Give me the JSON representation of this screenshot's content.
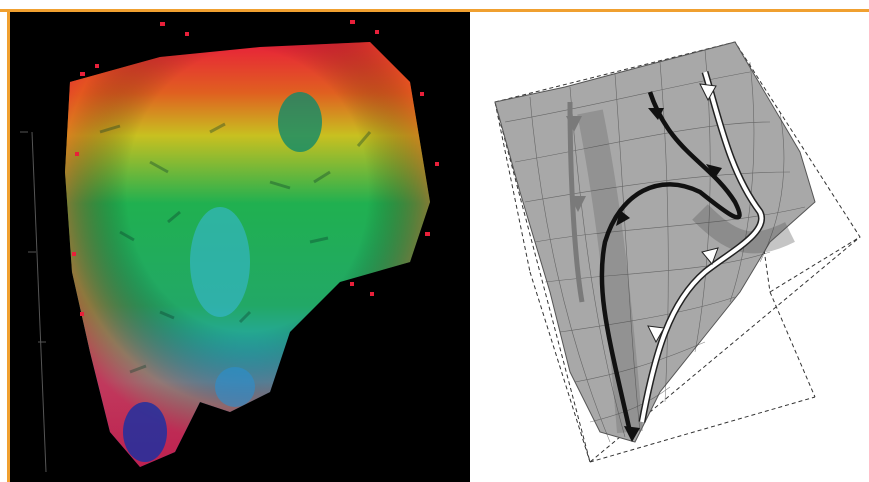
{
  "figure": {
    "left_panel": {
      "name": "funnel-energy-landscape",
      "colors": [
        "#1a2a9a",
        "#2aa8e0",
        "#20b050",
        "#c8c020",
        "#e06020",
        "#e8203a"
      ]
    },
    "right_panel": {
      "name": "wireframe-surface-with-trajectories",
      "colors": {
        "surface": "#9a9a9a",
        "black_path": "#111111",
        "gray_path": "#7a7a7a",
        "white_path": "#ffffff"
      }
    },
    "accent": "#f0a030"
  }
}
